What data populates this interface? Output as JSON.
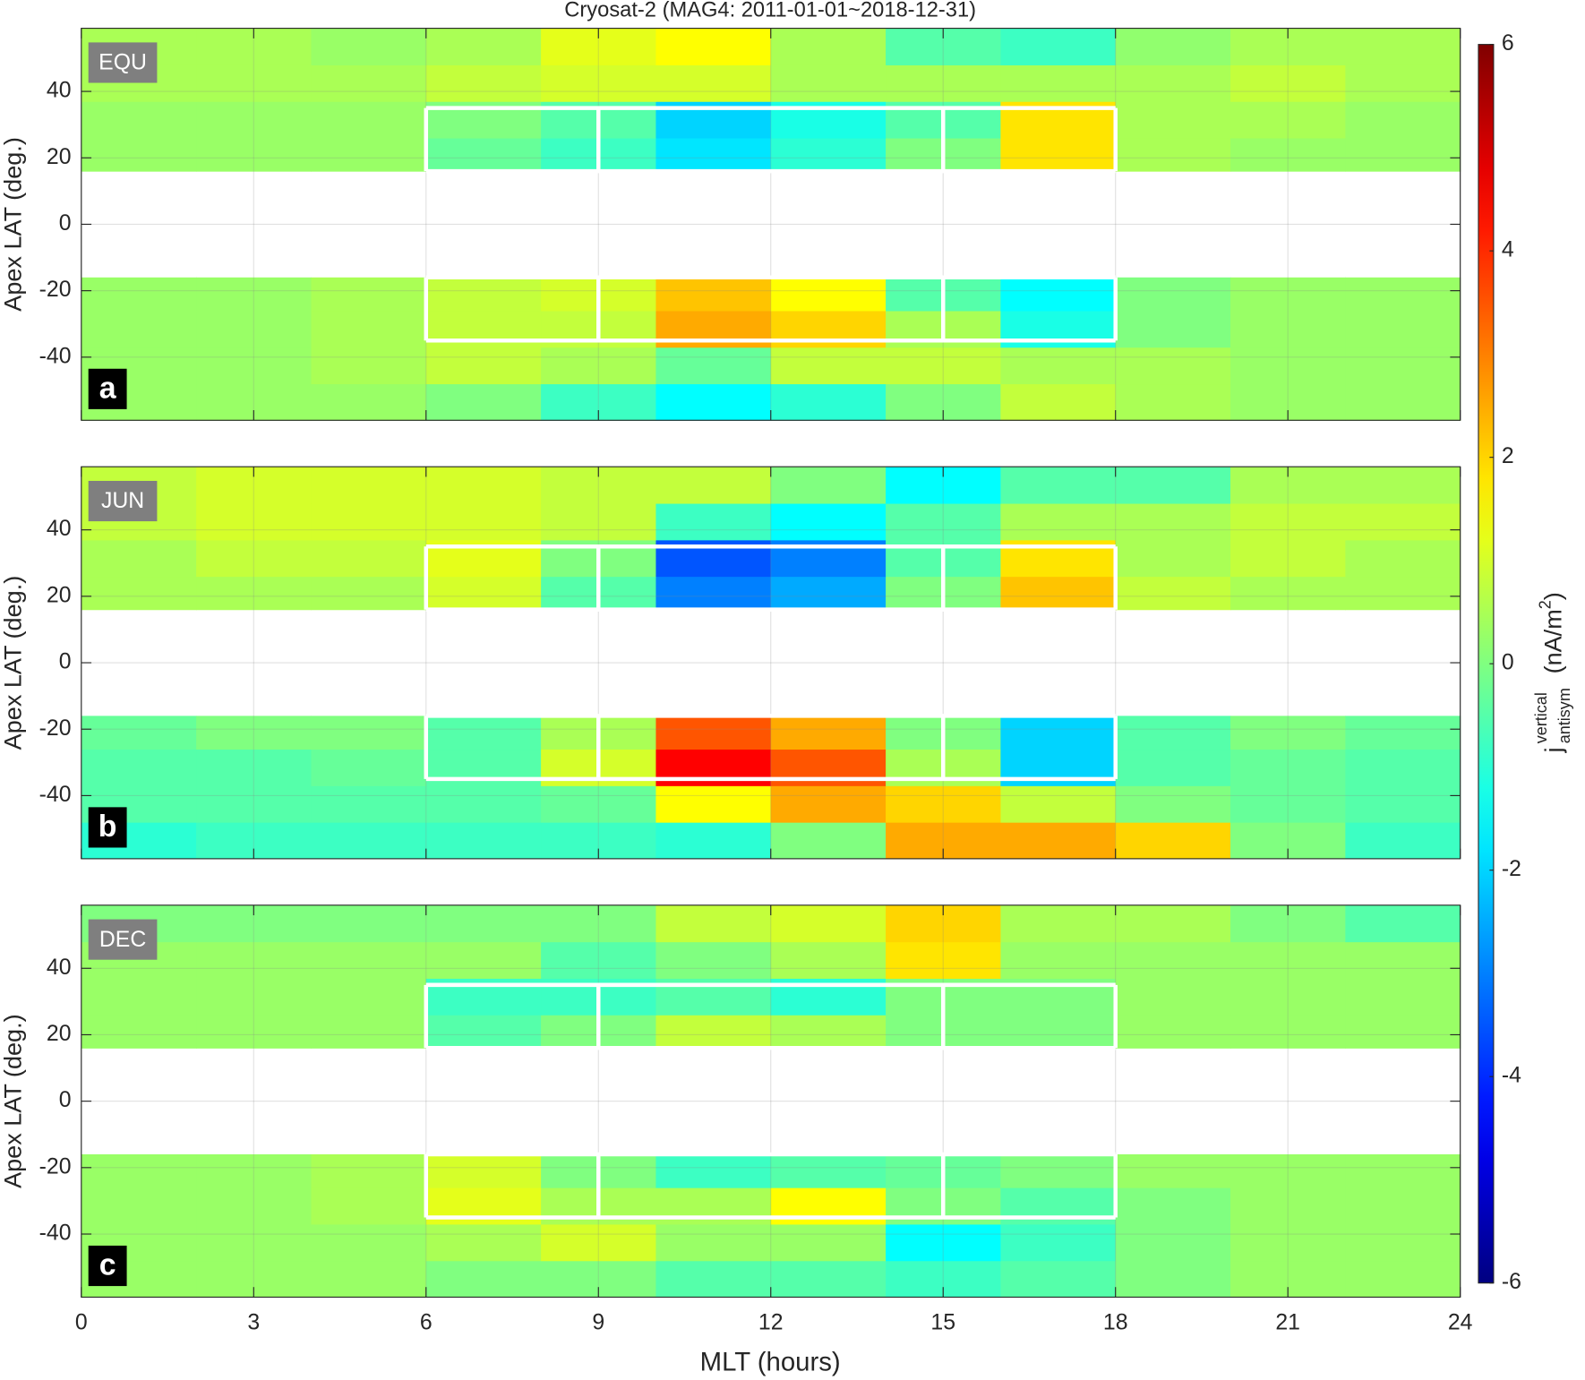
{
  "chart_data": {
    "type": "heatmap",
    "title": "Cryosat-2 (MAG4: 2011-01-01~2018-12-31)",
    "x_label": "MLT (hours)",
    "xlim": [
      0,
      24
    ],
    "xticks": [
      0,
      3,
      6,
      9,
      12,
      15,
      18,
      21,
      24
    ],
    "grid": true,
    "colormap": "jet",
    "colorbar": {
      "clim": [
        -6,
        6
      ],
      "ticks": [
        -6,
        -4,
        -2,
        0,
        2,
        4,
        6
      ],
      "label": {
        "base": "j",
        "sup": "vertical",
        "sub": "antisym",
        "unit": "(nA/m",
        "unit_sup": "2",
        "unit_end": ")"
      }
    },
    "boxes": {
      "x": [
        6,
        9,
        15,
        18
      ],
      "y": [
        [
          16,
          35
        ],
        [
          -35,
          -16
        ]
      ],
      "color": "#ffffff"
    },
    "panels": [
      {
        "tag": "EQU",
        "letter": "a",
        "y_label": "Apex LAT (deg.)",
        "ylim": [
          -59,
          59
        ],
        "yticks": [
          -40,
          -20,
          0,
          20,
          40
        ],
        "x_edges": [
          0,
          2,
          4,
          6,
          8,
          10,
          12,
          14,
          16,
          18,
          20,
          22,
          24
        ],
        "y_edges": [
          -59,
          -48,
          -37,
          -26,
          -16,
          16,
          26,
          37,
          48,
          59
        ],
        "values": [
          [
            0.3,
            0.3,
            0.3,
            0,
            -0.8,
            -1.5,
            -1.0,
            0,
            0.8,
            0.5,
            0.3,
            0.3
          ],
          [
            0.3,
            0.3,
            0.5,
            0.8,
            0.5,
            -0.3,
            0.8,
            0.8,
            0.5,
            0.5,
            0.3,
            0.3
          ],
          [
            0.3,
            0.3,
            0.5,
            0.8,
            0.8,
            2.5,
            2.0,
            0.5,
            -1.2,
            0,
            0.3,
            0.3
          ],
          [
            0.3,
            0.3,
            0.5,
            0.8,
            1.0,
            2.2,
            1.5,
            -0.5,
            -1.5,
            0,
            0.3,
            0.3
          ],
          [
            null,
            null,
            null,
            null,
            null,
            null,
            null,
            null,
            null,
            null,
            null,
            null
          ],
          [
            0.3,
            0.3,
            0.3,
            -0.3,
            -0.8,
            -1.8,
            -1.0,
            0,
            1.8,
            0.5,
            0.3,
            0.3
          ],
          [
            0.3,
            0.3,
            0.3,
            0,
            -0.5,
            -2.0,
            -1.2,
            -0.5,
            1.8,
            0.5,
            0.5,
            0.3
          ],
          [
            0.5,
            0.5,
            0.5,
            0.8,
            1.0,
            1.0,
            0.5,
            0.5,
            0.5,
            0.5,
            0.8,
            0.5
          ],
          [
            0.5,
            0.5,
            0.3,
            0.5,
            1.2,
            1.5,
            0.5,
            -0.5,
            -0.8,
            0.2,
            0.5,
            0.5
          ]
        ]
      },
      {
        "tag": "JUN",
        "letter": "b",
        "y_label": "Apex LAT (deg.)",
        "ylim": [
          -59,
          59
        ],
        "yticks": [
          -40,
          -20,
          0,
          20,
          40
        ],
        "x_edges": [
          0,
          2,
          4,
          6,
          8,
          10,
          12,
          14,
          16,
          18,
          20,
          22,
          24
        ],
        "y_edges": [
          -59,
          -48,
          -37,
          -26,
          -16,
          16,
          26,
          37,
          48,
          59
        ],
        "values": [
          [
            -1.0,
            -0.8,
            -0.8,
            -0.8,
            -0.8,
            -1.0,
            0,
            2.5,
            2.5,
            2.0,
            0,
            -0.8
          ],
          [
            -0.5,
            -0.5,
            -0.5,
            -0.5,
            -0.3,
            1.5,
            2.5,
            2.0,
            0.8,
            0,
            -0.3,
            -0.5
          ],
          [
            -0.5,
            -0.5,
            -0.3,
            -0.5,
            1.0,
            4.5,
            3.5,
            0.5,
            -2.0,
            -0.5,
            -0.3,
            -0.5
          ],
          [
            -0.3,
            0,
            0,
            -0.5,
            0.5,
            3.5,
            2.5,
            0,
            -2,
            -0.5,
            0,
            -0.3
          ],
          [
            null,
            null,
            null,
            null,
            null,
            null,
            null,
            null,
            null,
            null,
            null,
            null
          ],
          [
            0.5,
            0.5,
            0.5,
            1.0,
            -0.5,
            -3.0,
            -2.5,
            0,
            2.2,
            0.8,
            0.5,
            0.5
          ],
          [
            0.5,
            0.8,
            0.8,
            1.2,
            0,
            -3.5,
            -3.0,
            -0.5,
            1.8,
            0.5,
            0.8,
            0.5
          ],
          [
            0.8,
            1.0,
            1.0,
            1.0,
            0.8,
            -0.8,
            -1.5,
            -0.5,
            0.5,
            0.5,
            0.8,
            0.8
          ],
          [
            0.8,
            1.0,
            1.0,
            1.0,
            0.8,
            0.8,
            0,
            -1.5,
            -0.5,
            -0.5,
            0.5,
            0.5
          ]
        ]
      },
      {
        "tag": "DEC",
        "letter": "c",
        "y_label": "Apex LAT (deg.)",
        "ylim": [
          -59,
          59
        ],
        "yticks": [
          -40,
          -20,
          0,
          20,
          40
        ],
        "x_edges": [
          0,
          2,
          4,
          6,
          8,
          10,
          12,
          14,
          16,
          18,
          20,
          22,
          24
        ],
        "y_edges": [
          -59,
          -48,
          -37,
          -26,
          -16,
          16,
          26,
          37,
          48,
          59
        ],
        "values": [
          [
            0.3,
            0.3,
            0.3,
            0,
            0,
            -0.5,
            -0.5,
            -0.8,
            -0.5,
            0,
            0.3,
            0.3
          ],
          [
            0.3,
            0.3,
            0.3,
            0.5,
            1.0,
            0.3,
            0.3,
            -1.5,
            -0.8,
            0,
            0.3,
            0.3
          ],
          [
            0.3,
            0.3,
            0.5,
            1.2,
            0.5,
            0.5,
            1.5,
            0,
            -0.5,
            0,
            0.3,
            0.3
          ],
          [
            0.3,
            0.3,
            0.5,
            1.0,
            0,
            -0.8,
            -0.5,
            -0.3,
            0,
            0.3,
            0.3,
            0.3
          ],
          [
            null,
            null,
            null,
            null,
            null,
            null,
            null,
            null,
            null,
            null,
            null,
            null
          ],
          [
            0.3,
            0.3,
            0.3,
            -0.5,
            0,
            0.8,
            0.5,
            0,
            0,
            0.3,
            0.3,
            0.3
          ],
          [
            0.3,
            0.3,
            0.3,
            -0.8,
            -0.8,
            -0.5,
            -1.0,
            0,
            0,
            0.3,
            0.3,
            0.3
          ],
          [
            0.3,
            0.3,
            0.3,
            0.3,
            -0.5,
            0,
            0.5,
            1.8,
            0.3,
            0.3,
            0.3,
            0.3
          ],
          [
            0,
            0,
            0,
            0,
            0,
            0.8,
            1.0,
            2.0,
            0.5,
            0.5,
            0,
            -0.5
          ]
        ]
      }
    ]
  }
}
